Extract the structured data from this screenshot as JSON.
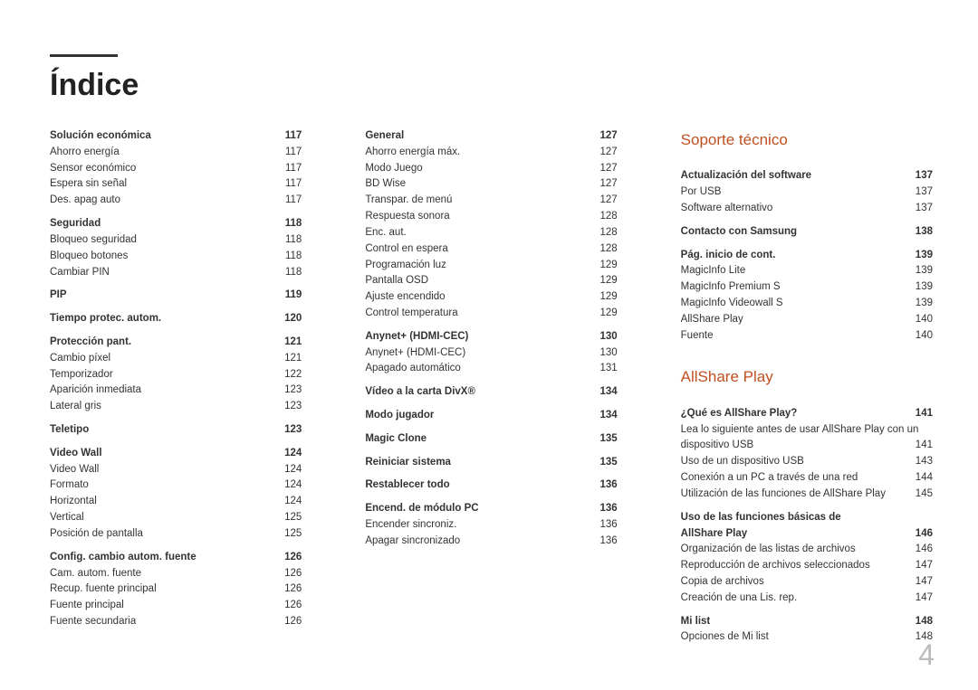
{
  "title": "Índice",
  "pageNumber": "4",
  "col1": [
    {
      "type": "head",
      "label": "Solución económica",
      "page": "117"
    },
    {
      "label": "Ahorro energía",
      "page": "117"
    },
    {
      "label": "Sensor económico",
      "page": "117"
    },
    {
      "label": "Espera sin señal",
      "page": "117"
    },
    {
      "label": "Des. apag auto",
      "page": "117"
    },
    {
      "type": "gap"
    },
    {
      "type": "head",
      "label": "Seguridad",
      "page": "118"
    },
    {
      "label": "Bloqueo seguridad",
      "page": "118"
    },
    {
      "label": "Bloqueo botones",
      "page": "118"
    },
    {
      "label": "Cambiar PIN",
      "page": "118"
    },
    {
      "type": "gap"
    },
    {
      "type": "head",
      "label": "PIP",
      "page": "119"
    },
    {
      "type": "gap"
    },
    {
      "type": "head",
      "label": "Tiempo protec. autom.",
      "page": "120"
    },
    {
      "type": "gap"
    },
    {
      "type": "head",
      "label": "Protección pant.",
      "page": "121"
    },
    {
      "label": "Cambio píxel",
      "page": "121"
    },
    {
      "label": "Temporizador",
      "page": "122"
    },
    {
      "label": "Aparición inmediata",
      "page": "123"
    },
    {
      "label": "Lateral gris",
      "page": "123"
    },
    {
      "type": "gap"
    },
    {
      "type": "head",
      "label": "Teletipo",
      "page": "123"
    },
    {
      "type": "gap"
    },
    {
      "type": "head",
      "label": "Video Wall",
      "page": "124"
    },
    {
      "label": "Video Wall",
      "page": "124"
    },
    {
      "label": "Formato",
      "page": "124"
    },
    {
      "label": "Horizontal",
      "page": "124"
    },
    {
      "label": "Vertical",
      "page": "125"
    },
    {
      "label": "Posición de pantalla",
      "page": "125"
    },
    {
      "type": "gap"
    },
    {
      "type": "head",
      "label": "Config. cambio autom. fuente",
      "page": "126"
    },
    {
      "label": "Cam. autom. fuente",
      "page": "126"
    },
    {
      "label": "Recup. fuente principal",
      "page": "126"
    },
    {
      "label": "Fuente principal",
      "page": "126"
    },
    {
      "label": "Fuente secundaria",
      "page": "126"
    }
  ],
  "col2": [
    {
      "type": "head",
      "label": "General",
      "page": "127"
    },
    {
      "label": "Ahorro energía máx.",
      "page": "127"
    },
    {
      "label": "Modo Juego",
      "page": "127"
    },
    {
      "label": "BD Wise",
      "page": "127"
    },
    {
      "label": "Transpar. de menú",
      "page": "127"
    },
    {
      "label": "Respuesta sonora",
      "page": "128"
    },
    {
      "label": "Enc. aut.",
      "page": "128"
    },
    {
      "label": "Control en espera",
      "page": "128"
    },
    {
      "label": "Programación luz",
      "page": "129"
    },
    {
      "label": "Pantalla OSD",
      "page": "129"
    },
    {
      "label": "Ajuste encendido",
      "page": "129"
    },
    {
      "label": "Control temperatura",
      "page": "129"
    },
    {
      "type": "gap"
    },
    {
      "type": "head",
      "label": "Anynet+ (HDMI-CEC)",
      "page": "130"
    },
    {
      "label": "Anynet+ (HDMI-CEC)",
      "page": "130"
    },
    {
      "label": "Apagado automático",
      "page": "131"
    },
    {
      "type": "gap"
    },
    {
      "type": "head",
      "label": "Vídeo a la carta DivX®",
      "page": "134"
    },
    {
      "type": "gap"
    },
    {
      "type": "head",
      "label": "Modo jugador",
      "page": "134"
    },
    {
      "type": "gap"
    },
    {
      "type": "head",
      "label": "Magic Clone",
      "page": "135"
    },
    {
      "type": "gap"
    },
    {
      "type": "head",
      "label": "Reiniciar sistema",
      "page": "135"
    },
    {
      "type": "gap"
    },
    {
      "type": "head",
      "label": "Restablecer todo",
      "page": "136"
    },
    {
      "type": "gap"
    },
    {
      "type": "head",
      "label": "Encend. de módulo PC",
      "page": "136"
    },
    {
      "label": "Encender sincroniz.",
      "page": "136"
    },
    {
      "label": "Apagar sincronizado",
      "page": "136"
    }
  ],
  "col3": [
    {
      "type": "section",
      "label": "Soporte técnico"
    },
    {
      "type": "gap"
    },
    {
      "type": "head",
      "label": "Actualización del software",
      "page": "137"
    },
    {
      "label": "Por USB",
      "page": "137"
    },
    {
      "label": "Software alternativo",
      "page": "137"
    },
    {
      "type": "gap"
    },
    {
      "type": "head",
      "label": "Contacto con Samsung",
      "page": "138"
    },
    {
      "type": "gap"
    },
    {
      "type": "head",
      "label": "Pág. inicio de cont.",
      "page": "139"
    },
    {
      "label": "MagicInfo Lite",
      "page": "139"
    },
    {
      "label": "MagicInfo Premium S",
      "page": "139"
    },
    {
      "label": "MagicInfo Videowall S",
      "page": "139"
    },
    {
      "label": "AllShare Play",
      "page": "140"
    },
    {
      "label": "Fuente",
      "page": "140"
    },
    {
      "type": "gap"
    },
    {
      "type": "gap"
    },
    {
      "type": "gap"
    },
    {
      "type": "section",
      "label": "AllShare Play"
    },
    {
      "type": "gap"
    },
    {
      "type": "head",
      "label": "¿Qué es AllShare Play?",
      "page": "141"
    },
    {
      "type": "text",
      "label": "Lea lo siguiente antes de usar AllShare Play con un"
    },
    {
      "label": "dispositivo USB",
      "page": "141"
    },
    {
      "label": "Uso de un dispositivo USB",
      "page": "143"
    },
    {
      "label": "Conexión a un PC a través de una red",
      "page": "144"
    },
    {
      "label": "Utilización de las funciones de AllShare Play",
      "page": "145"
    },
    {
      "type": "gap"
    },
    {
      "type": "head-noline",
      "label": "Uso de las funciones básicas de"
    },
    {
      "type": "head",
      "label": "AllShare Play",
      "page": "146"
    },
    {
      "label": "Organización de las listas de archivos",
      "page": "146"
    },
    {
      "label": "Reproducción de archivos seleccionados",
      "page": "147"
    },
    {
      "label": "Copia de archivos",
      "page": "147"
    },
    {
      "label": "Creación de una Lis. rep.",
      "page": "147"
    },
    {
      "type": "gap"
    },
    {
      "type": "head",
      "label": "Mi list",
      "page": "148"
    },
    {
      "label": "Opciones de Mi list",
      "page": "148"
    }
  ]
}
